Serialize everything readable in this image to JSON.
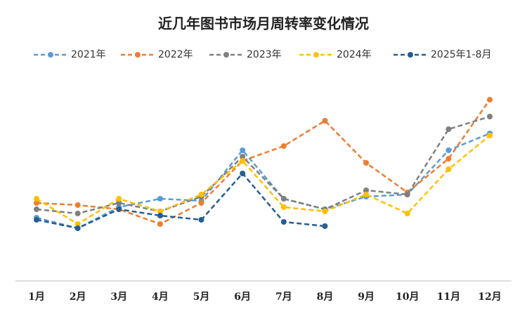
{
  "chart_data": {
    "type": "line",
    "title": "近几年图书市场月周转率变化情况",
    "categories": [
      "1月",
      "2月",
      "3月",
      "4月",
      "5月",
      "6月",
      "7月",
      "8月",
      "9月",
      "10月",
      "11月",
      "12月"
    ],
    "ylim": [
      0,
      100
    ],
    "series": [
      {
        "name": "2021年",
        "color": "#5b9bd5",
        "values": [
          30,
          25,
          35,
          39,
          38,
          62,
          39,
          34,
          40,
          41,
          62,
          70
        ]
      },
      {
        "name": "2022年",
        "color": "#ed7d31",
        "values": [
          37,
          36,
          34,
          27,
          37,
          57,
          64,
          76,
          56,
          42,
          58,
          86
        ]
      },
      {
        "name": "2023年",
        "color": "#7f7f7f",
        "values": [
          34,
          32,
          37,
          33,
          40,
          59,
          39,
          34,
          43,
          41,
          72,
          78
        ]
      },
      {
        "name": "2024年",
        "color": "#ffc000",
        "values": [
          39,
          27,
          39,
          33,
          41,
          57,
          35,
          33,
          41,
          32,
          53,
          69
        ]
      },
      {
        "name": "2025年1-8月",
        "color": "#255e91",
        "values": [
          29,
          25,
          34,
          31,
          29,
          51,
          28,
          26,
          null,
          null,
          null,
          null
        ]
      }
    ]
  }
}
